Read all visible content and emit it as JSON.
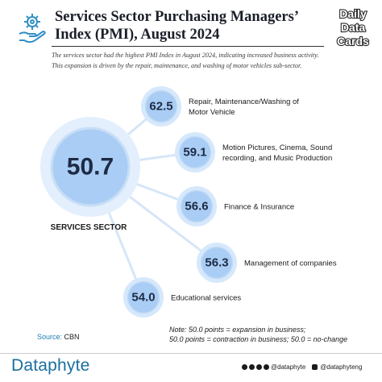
{
  "header": {
    "title": "Services Sector Purchasing Managers’ Index (PMI), August 2024",
    "subtitle": "The services sector had the highest PMI Index in August 2024, indicating increased business activity. This expansion is driven by the repair, maintenance, and washing of motor vehicles sub-sector.",
    "badge_lines": [
      "Daily",
      "Data",
      "Cards"
    ],
    "icon": "hand-gear-icon"
  },
  "chart_data": {
    "type": "bubble",
    "center": {
      "label": "SERVICES SECTOR",
      "value": "50.7"
    },
    "items": [
      {
        "value": "62.5",
        "label_lines": [
          "Repair, Maintenance/Washing of",
          "Motor Vehicle"
        ]
      },
      {
        "value": "59.1",
        "label_lines": [
          "Motion Pictures, Cinema, Sound",
          "recording, and Music Production"
        ]
      },
      {
        "value": "56.6",
        "label_lines": [
          "Finance & Insurance"
        ]
      },
      {
        "value": "56.3",
        "label_lines": [
          "Management of companies"
        ]
      },
      {
        "value": "54.0",
        "label_lines": [
          "Educational services"
        ]
      }
    ],
    "colors": {
      "bubble_fill": "#a9cdf4",
      "bubble_ring": "#d6e8fb",
      "center_ring": "#e3effc",
      "line": "#d6e6f8"
    }
  },
  "source": {
    "label": "Source:",
    "value": "CBN"
  },
  "note": {
    "line1": "Note: 50.0 points = expansion in business;",
    "line2": "50.0 points = contraction in business; 50.0 = no-change"
  },
  "footer": {
    "brand": "Dataphyte",
    "handle1": "@dataphyte",
    "handle2": "@dataphyteng"
  }
}
